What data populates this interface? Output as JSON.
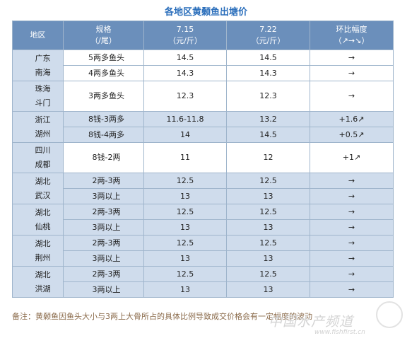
{
  "title": "各地区黄颡鱼出塘价",
  "headers": {
    "region": "地区",
    "spec": [
      "规格",
      "（/尾）"
    ],
    "d1": [
      "7.15",
      "（元/斤）"
    ],
    "d2": [
      "7.22",
      "（元/斤）"
    ],
    "change": [
      "环比幅度",
      "（↗→↘）"
    ]
  },
  "groups": [
    {
      "region": [
        "广东",
        "南海"
      ],
      "shaded": false,
      "rows": [
        {
          "spec": "5两多鱼头",
          "p1": "14.5",
          "p2": "14.5",
          "change": "→",
          "up": false
        },
        {
          "spec": "4两多鱼头",
          "p1": "14.3",
          "p2": "14.3",
          "change": "→",
          "up": false
        }
      ]
    },
    {
      "region": [
        "珠海",
        "斗门"
      ],
      "shaded": false,
      "rows": [
        {
          "spec": "3两多鱼头",
          "p1": "12.3",
          "p2": "12.3",
          "change": "→",
          "up": false,
          "tall": true
        }
      ]
    },
    {
      "region": [
        "浙江",
        "湖州"
      ],
      "shaded": true,
      "rows": [
        {
          "spec": "8钱-3两多",
          "p1": "11.6-11.8",
          "p2": "13.2",
          "change": "+1.6↗",
          "up": true
        },
        {
          "spec": "8钱-4两多",
          "p1": "14",
          "p2": "14.5",
          "change": "+0.5↗",
          "up": true
        }
      ]
    },
    {
      "region": [
        "四川",
        "成都"
      ],
      "shaded": false,
      "rows": [
        {
          "spec": "8钱-2两",
          "p1": "11",
          "p2": "12",
          "change": "+1↗",
          "up": true,
          "tall": true
        }
      ]
    },
    {
      "region": [
        "湖北",
        "武汉"
      ],
      "shaded": true,
      "rows": [
        {
          "spec": "2两-3两",
          "p1": "12.5",
          "p2": "12.5",
          "change": "→",
          "up": false
        },
        {
          "spec": "3两以上",
          "p1": "13",
          "p2": "13",
          "change": "→",
          "up": false
        }
      ]
    },
    {
      "region": [
        "湖北",
        "仙桃"
      ],
      "shaded": true,
      "rows": [
        {
          "spec": "2两-3两",
          "p1": "12.5",
          "p2": "12.5",
          "change": "→",
          "up": false
        },
        {
          "spec": "3两以上",
          "p1": "13",
          "p2": "13",
          "change": "→",
          "up": false
        }
      ]
    },
    {
      "region": [
        "湖北",
        "荆州"
      ],
      "shaded": true,
      "rows": [
        {
          "spec": "2两-3两",
          "p1": "12.5",
          "p2": "12.5",
          "change": "→",
          "up": false
        },
        {
          "spec": "3两以上",
          "p1": "13",
          "p2": "13",
          "change": "→",
          "up": false
        }
      ]
    },
    {
      "region": [
        "湖北",
        "洪湖"
      ],
      "shaded": true,
      "rows": [
        {
          "spec": "2两-3两",
          "p1": "12.5",
          "p2": "12.5",
          "change": "→",
          "up": false
        },
        {
          "spec": "3两以上",
          "p1": "13",
          "p2": "13",
          "change": "→",
          "up": false
        }
      ]
    }
  ],
  "note": "备注：黄颡鱼因鱼头大小与3两上大骨所占的具体比例导致成交价格会有一定幅度的波动",
  "watermark": {
    "text": "中国水产频道",
    "url": "www.fishfirst.cn"
  }
}
